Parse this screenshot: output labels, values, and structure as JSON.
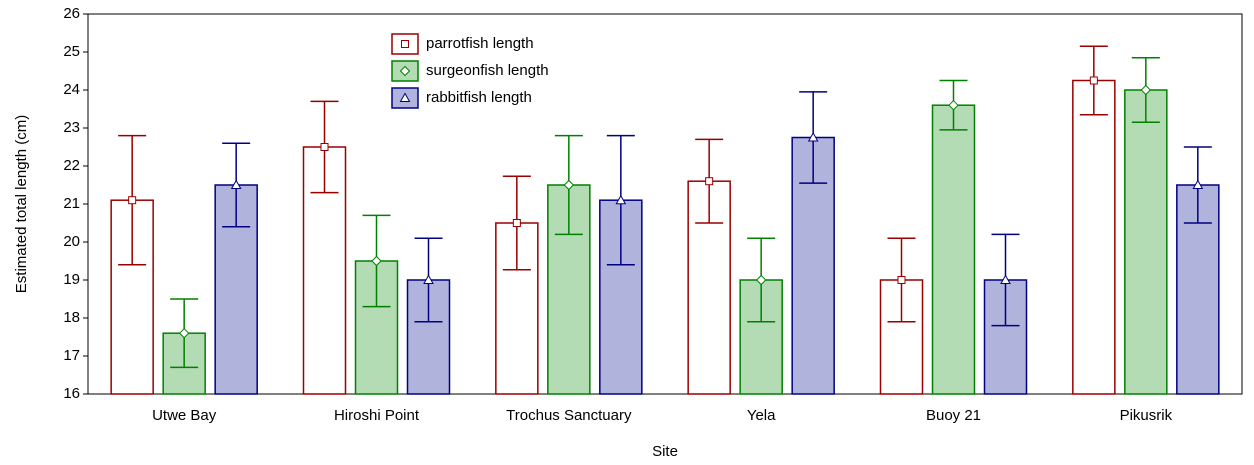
{
  "chart_data": {
    "type": "bar",
    "xlabel": "Site",
    "ylabel": "Estimated total length (cm)",
    "categories": [
      "Utwe Bay",
      "Hiroshi Point",
      "Trochus Sanctuary",
      "Yela",
      "Buoy 21",
      "Pikusrik"
    ],
    "series": [
      {
        "name": "parrotfish length",
        "color": "#990000",
        "fill": "#ffffff",
        "marker": "square",
        "values": [
          21.1,
          22.5,
          20.5,
          21.6,
          19.0,
          24.25
        ],
        "errors": [
          1.7,
          1.2,
          1.23,
          1.1,
          1.1,
          0.9
        ]
      },
      {
        "name": "surgeonfish length",
        "color": "#008000",
        "fill": "#b4dcb4",
        "marker": "diamond",
        "values": [
          17.6,
          19.5,
          21.5,
          19.0,
          23.6,
          24.0
        ],
        "errors": [
          0.9,
          1.2,
          1.3,
          1.1,
          0.65,
          0.85
        ]
      },
      {
        "name": "rabbitfish length",
        "color": "#000080",
        "fill": "#b0b4dc",
        "marker": "triangle",
        "values": [
          21.5,
          19.0,
          21.1,
          22.75,
          19.0,
          21.5
        ],
        "errors": [
          1.1,
          1.1,
          1.7,
          1.2,
          1.2,
          1.0
        ]
      }
    ],
    "ylim": [
      16,
      26
    ],
    "yticks": [
      16,
      17,
      18,
      19,
      20,
      21,
      22,
      23,
      24,
      25,
      26
    ],
    "legend": "top",
    "grid": false
  }
}
